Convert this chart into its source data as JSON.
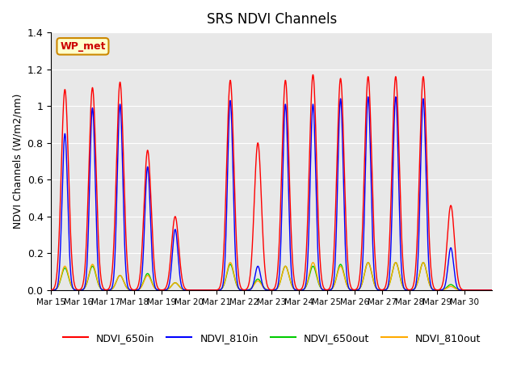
{
  "title": "SRS NDVI Channels",
  "ylabel": "NDVI Channels (W/m2/nm)",
  "annotation_text": "WP_met",
  "annotation_bg": "#ffffcc",
  "annotation_border": "#cc8800",
  "annotation_text_color": "#cc0000",
  "ylim": [
    0,
    1.4
  ],
  "bg_color": "#e8e8e8",
  "colors": {
    "NDVI_650in": "#ff0000",
    "NDVI_810in": "#0000ff",
    "NDVI_650out": "#00cc00",
    "NDVI_810out": "#ffaa00"
  },
  "x_tick_labels": [
    "Mar 15",
    "Mar 16",
    "Mar 17",
    "Mar 18",
    "Mar 19",
    "Mar 20",
    "Mar 21",
    "Mar 22",
    "Mar 23",
    "Mar 24",
    "Mar 25",
    "Mar 26",
    "Mar 27",
    "Mar 28",
    "Mar 29",
    "Mar 30"
  ],
  "yticks": [
    0.0,
    0.2,
    0.4,
    0.6,
    0.8,
    1.0,
    1.2,
    1.4
  ],
  "num_days": 16,
  "peaks_650in": [
    1.09,
    1.1,
    1.13,
    0.76,
    0.4,
    0.0,
    1.14,
    0.8,
    1.14,
    1.17,
    1.15,
    1.16,
    1.16,
    1.16,
    0.46,
    0.0
  ],
  "peaks_810in": [
    0.85,
    0.99,
    1.01,
    0.67,
    0.33,
    0.0,
    1.03,
    0.13,
    1.01,
    1.01,
    1.04,
    1.05,
    1.05,
    1.04,
    0.23,
    0.0
  ],
  "peaks_650out": [
    0.12,
    0.13,
    0.08,
    0.09,
    0.04,
    0.0,
    0.14,
    0.06,
    0.13,
    0.13,
    0.14,
    0.15,
    0.15,
    0.15,
    0.03,
    0.0
  ],
  "peaks_810out": [
    0.13,
    0.14,
    0.08,
    0.08,
    0.04,
    0.0,
    0.15,
    0.05,
    0.13,
    0.15,
    0.13,
    0.15,
    0.15,
    0.15,
    0.02,
    0.0
  ]
}
